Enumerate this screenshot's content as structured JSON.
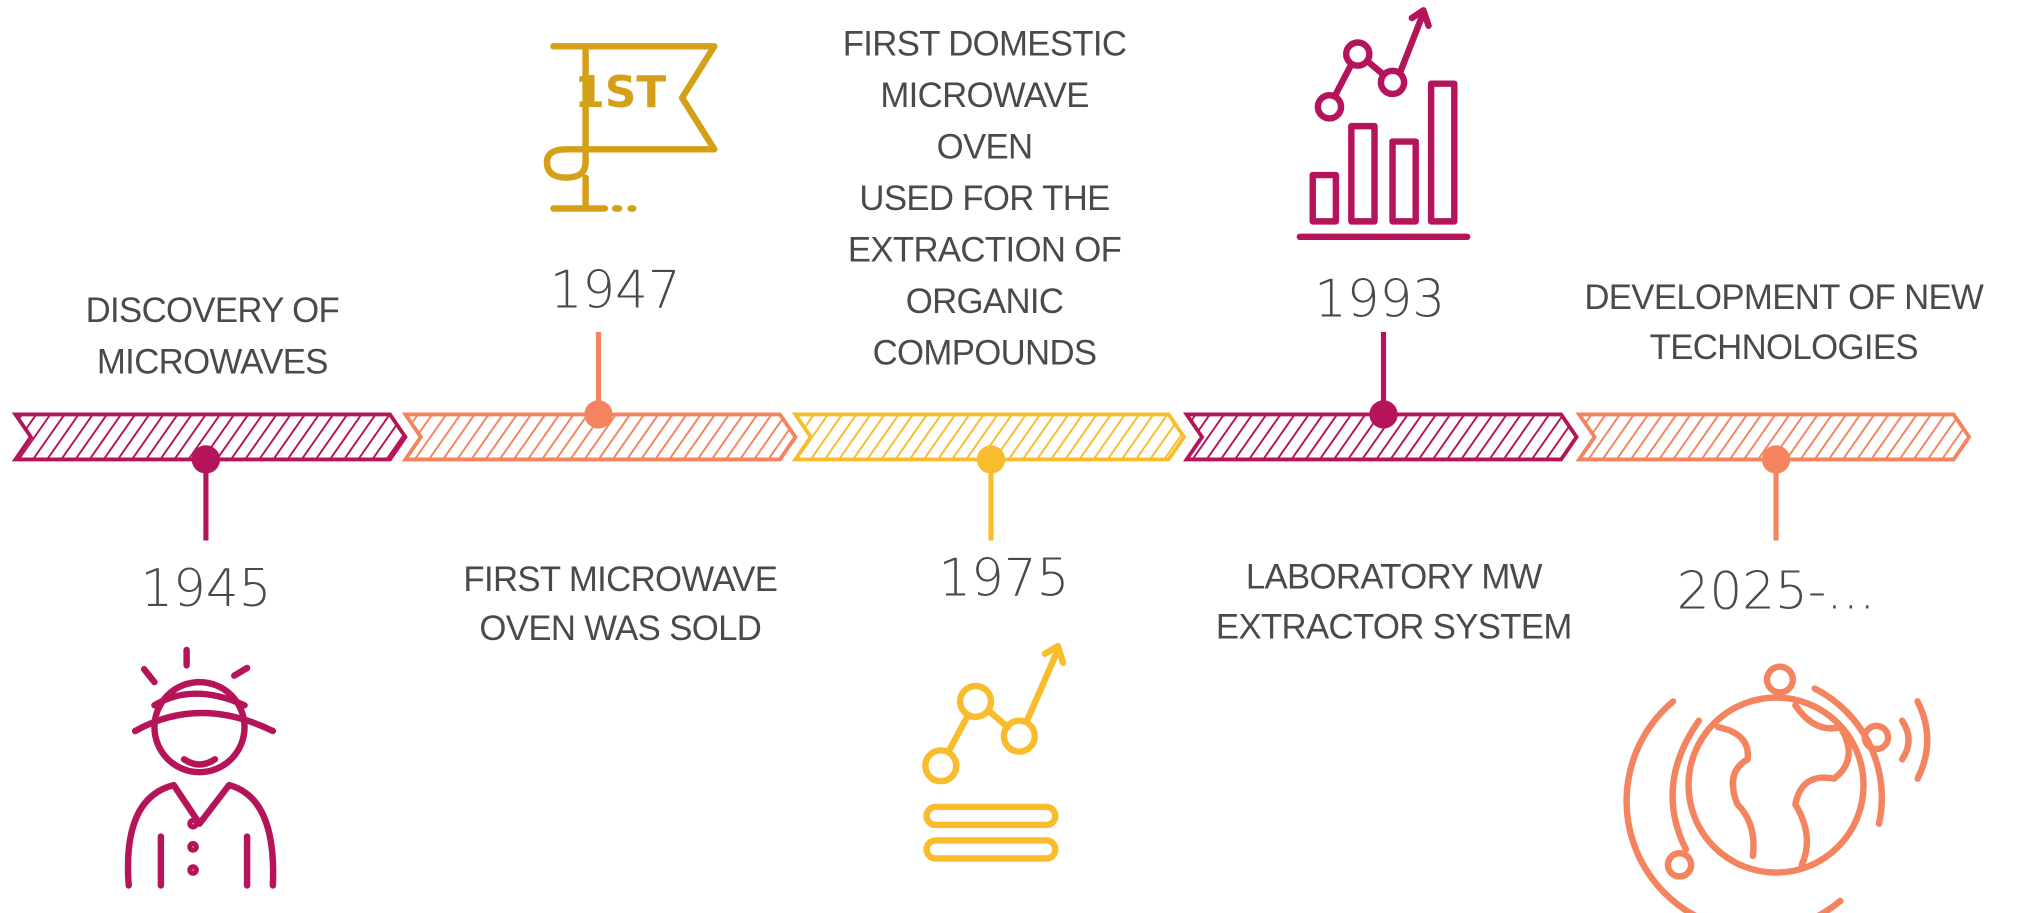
{
  "events": [
    {
      "year": "1945",
      "label": [
        "DISCOVERY OF",
        "MICROWAVES"
      ]
    },
    {
      "year": "1947",
      "label": [
        "FIRST MICROWAVE",
        "OVEN WAS SOLD"
      ],
      "icon_text": "1ST"
    },
    {
      "year": "1975",
      "label": [
        "FIRST DOMESTIC",
        "MICROWAVE",
        "OVEN",
        "USED FOR THE",
        "EXTRACTION OF",
        "ORGANIC",
        "COMPOUNDS"
      ]
    },
    {
      "year": "1993",
      "label": [
        "LABORATORY MW",
        "EXTRACTOR SYSTEM"
      ]
    },
    {
      "year": "2025-...",
      "label": [
        "DEVELOPMENT OF NEW",
        "TECHNOLOGIES"
      ]
    }
  ]
}
